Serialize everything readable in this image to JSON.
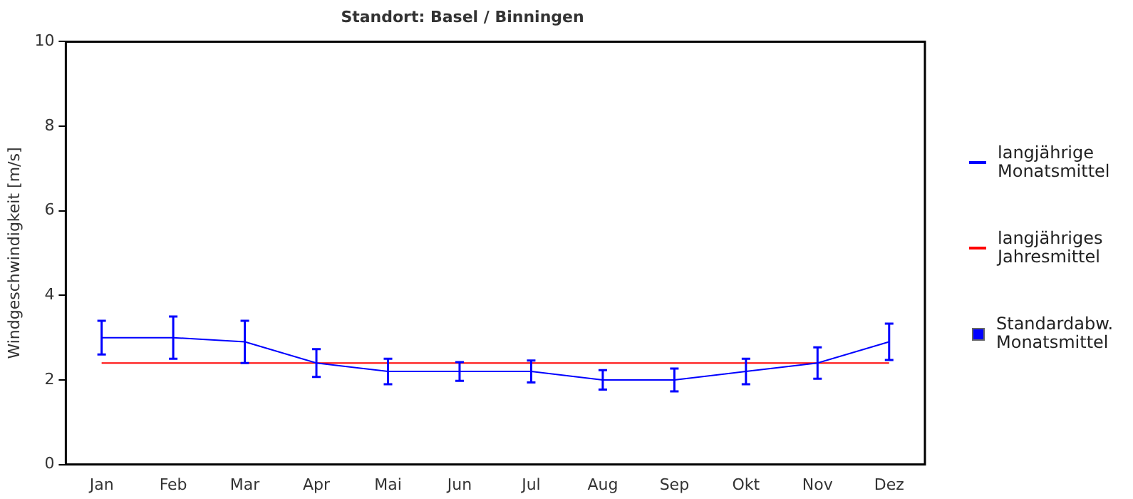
{
  "chart_data": {
    "type": "line",
    "title": "Standort: Basel / Binningen",
    "ylabel": "Windgeschwindigkeit [m/s]",
    "categories": [
      "Jan",
      "Feb",
      "Mar",
      "Apr",
      "Mai",
      "Jun",
      "Jul",
      "Aug",
      "Sep",
      "Okt",
      "Nov",
      "Dez"
    ],
    "series": [
      {
        "name": "langjährige\nMonatsmittel",
        "color": "#0000ff",
        "values": [
          3.0,
          3.0,
          2.9,
          2.4,
          2.2,
          2.2,
          2.2,
          2.0,
          2.0,
          2.2,
          2.4,
          2.9
        ],
        "errors": [
          0.4,
          0.5,
          0.5,
          0.33,
          0.3,
          0.22,
          0.26,
          0.23,
          0.27,
          0.3,
          0.37,
          0.43
        ]
      },
      {
        "name": "langjähriges\nJahresmittel",
        "color": "#ff0000",
        "values": [
          2.4,
          2.4,
          2.4,
          2.4,
          2.4,
          2.4,
          2.4,
          2.4,
          2.4,
          2.4,
          2.4,
          2.4
        ]
      }
    ],
    "annotations": [
      "Standardabw.\nMonatsmittel"
    ],
    "ylim": [
      0,
      10
    ],
    "yticks": [
      0,
      2,
      4,
      6,
      8,
      10
    ],
    "grid": false,
    "legend": "right",
    "marker": "none"
  }
}
